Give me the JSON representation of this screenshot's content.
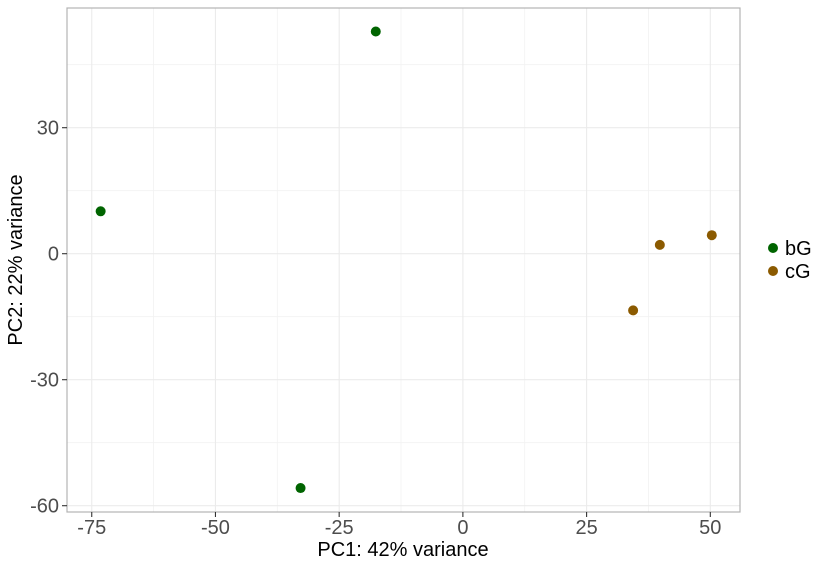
{
  "chart_data": {
    "type": "scatter",
    "title": "",
    "xlabel": "PC1: 42% variance",
    "ylabel": "PC2: 22% variance",
    "xlim": [
      -80,
      56
    ],
    "ylim": [
      -61.5,
      58.5
    ],
    "x_ticks": [
      -75,
      -50,
      -25,
      0,
      25,
      50
    ],
    "x_tick_labels": [
      "-75",
      "-50",
      "-25",
      "0",
      "25",
      "50"
    ],
    "y_ticks": [
      -60,
      -30,
      0,
      30
    ],
    "y_tick_labels": [
      "-60",
      "-30",
      "0",
      "30"
    ],
    "grid": true,
    "legend_position": "right",
    "series": [
      {
        "name": "bG",
        "color": "#006400",
        "points": [
          {
            "x": -73.2,
            "y": 10.1
          },
          {
            "x": -17.6,
            "y": 52.9
          },
          {
            "x": -32.8,
            "y": -55.8
          }
        ]
      },
      {
        "name": "cG",
        "color": "#8B5A00",
        "points": [
          {
            "x": 39.8,
            "y": 2.1
          },
          {
            "x": 50.3,
            "y": 4.4
          },
          {
            "x": 34.4,
            "y": -13.5
          }
        ]
      }
    ]
  }
}
